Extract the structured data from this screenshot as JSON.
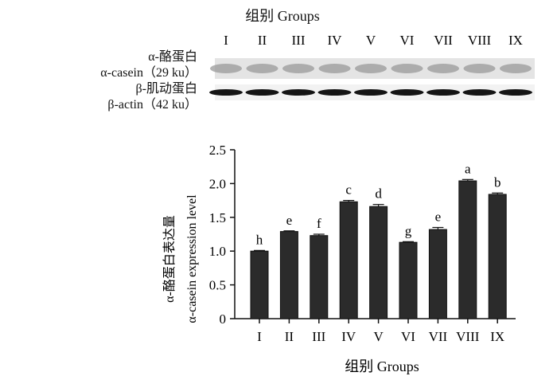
{
  "blot": {
    "title": "组别 Groups",
    "lanes": [
      "I",
      "II",
      "III",
      "IV",
      "V",
      "VI",
      "VII",
      "VIII",
      "IX"
    ],
    "alpha_casein_zh": "α-酪蛋白",
    "alpha_casein_en": "α-casein（29 ku）",
    "beta_actin_zh": "β-肌动蛋白",
    "beta_actin_en": "β-actin（42 ku）"
  },
  "chart_data": {
    "type": "bar",
    "categories": [
      "I",
      "II",
      "III",
      "IV",
      "V",
      "VI",
      "VII",
      "VIII",
      "IX"
    ],
    "values": [
      1.0,
      1.29,
      1.23,
      1.73,
      1.66,
      1.13,
      1.32,
      2.04,
      1.84
    ],
    "errors": [
      0.01,
      0.01,
      0.02,
      0.02,
      0.03,
      0.01,
      0.03,
      0.02,
      0.02
    ],
    "significance_letters": [
      "h",
      "e",
      "f",
      "c",
      "d",
      "g",
      "e",
      "a",
      "b"
    ],
    "xlabel": "组别 Groups",
    "ylabel_zh": "α-酪蛋白表达量",
    "ylabel_en": "α-casein expression level",
    "ylim": [
      0,
      2.5
    ],
    "yticks": [
      "0",
      "0.5",
      "1.0",
      "1.5",
      "2.0",
      "2.5"
    ],
    "bar_color": "#2b2b2b",
    "grid": false
  }
}
